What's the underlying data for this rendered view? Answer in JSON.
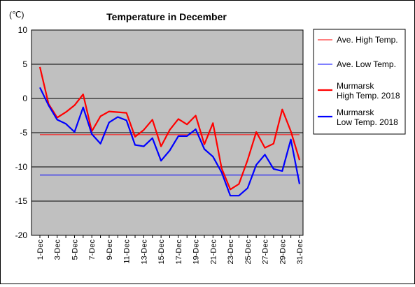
{
  "chart_data": {
    "type": "line",
    "title": "Temperature in December",
    "unit_label": "(℃)",
    "ylim": [
      -20,
      10
    ],
    "y_ticks": [
      10,
      5,
      0,
      -5,
      -10,
      -15,
      -20
    ],
    "grid": "horizontal",
    "legend_position": "right",
    "x_tick_labels": [
      "1-Dec",
      "3-Dec",
      "5-Dec",
      "7-Dec",
      "9-Dec",
      "11-Dec",
      "13-Dec",
      "15-Dec",
      "17-Dec",
      "19-Dec",
      "21-Dec",
      "23-Dec",
      "25-Dec",
      "27-Dec",
      "29-Dec",
      "31-Dec"
    ],
    "x": [
      1,
      2,
      3,
      4,
      5,
      6,
      7,
      8,
      9,
      10,
      11,
      12,
      13,
      14,
      15,
      16,
      17,
      18,
      19,
      20,
      21,
      22,
      23,
      24,
      25,
      26,
      27,
      28,
      29,
      30,
      31
    ],
    "colors": {
      "plot_background": "#c0c0c0",
      "high": "#ff0000",
      "low": "#0000ff"
    },
    "series": [
      {
        "name": "Ave. High Temp.",
        "style": "thin",
        "color": "#ff0000",
        "values": [
          -5.3,
          -5.3,
          -5.3,
          -5.3,
          -5.3,
          -5.3,
          -5.3,
          -5.3,
          -5.3,
          -5.3,
          -5.3,
          -5.3,
          -5.3,
          -5.3,
          -5.3,
          -5.3,
          -5.3,
          -5.3,
          -5.3,
          -5.3,
          -5.3,
          -5.3,
          -5.3,
          -5.3,
          -5.3,
          -5.3,
          -5.3,
          -5.3,
          -5.3,
          -5.3,
          -5.3
        ]
      },
      {
        "name": "Ave. Low Temp.",
        "style": "thin",
        "color": "#0000ff",
        "values": [
          -11.2,
          -11.2,
          -11.2,
          -11.2,
          -11.2,
          -11.2,
          -11.2,
          -11.2,
          -11.2,
          -11.2,
          -11.2,
          -11.2,
          -11.2,
          -11.2,
          -11.2,
          -11.2,
          -11.2,
          -11.2,
          -11.2,
          -11.2,
          -11.2,
          -11.2,
          -11.2,
          -11.2,
          -11.2,
          -11.2,
          -11.2,
          -11.2,
          -11.2,
          -11.2,
          -11.2
        ]
      },
      {
        "name": "Murmarsk\nHigh Temp. 2018",
        "style": "thick",
        "color": "#ff0000",
        "values": [
          4.6,
          -0.8,
          -2.8,
          -2.0,
          -1.0,
          0.6,
          -4.8,
          -2.6,
          -1.9,
          -2.0,
          -2.1,
          -5.6,
          -4.6,
          -3.1,
          -7.0,
          -4.6,
          -3.0,
          -3.8,
          -2.5,
          -6.7,
          -3.6,
          -10.2,
          -13.3,
          -12.5,
          -9.0,
          -4.9,
          -7.2,
          -6.6,
          -1.6,
          -4.8,
          -9.0
        ]
      },
      {
        "name": "Murmarsk\nLow Temp. 2018",
        "style": "thick",
        "color": "#0000ff",
        "values": [
          1.6,
          -1.0,
          -3.1,
          -3.7,
          -4.9,
          -1.3,
          -5.2,
          -6.6,
          -3.5,
          -2.7,
          -3.2,
          -6.8,
          -7.0,
          -5.8,
          -9.1,
          -7.6,
          -5.5,
          -5.5,
          -4.5,
          -7.4,
          -8.5,
          -10.8,
          -14.2,
          -14.2,
          -13.1,
          -9.7,
          -8.2,
          -10.3,
          -10.6,
          -6.0,
          -12.5
        ]
      }
    ]
  }
}
